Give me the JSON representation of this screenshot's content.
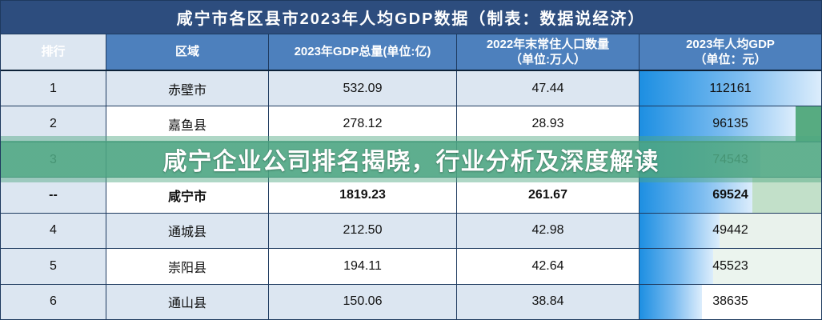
{
  "title": "咸宁市各区县市2023年人均GDP数据（制表：数据说经济）",
  "overlay": {
    "text": "咸宁企业公司排名揭晓，行业分析及深度解读",
    "color": "#4da681"
  },
  "colors": {
    "title_bg": "#2d4d7e",
    "header_bg": "#4d80bd",
    "rank_col_bg": "#dce6f1",
    "row_alt_bg": "#dce6f1",
    "row_bg": "#ffffff",
    "grid": "#1e3a5f",
    "bar_start": "#1d8fe2",
    "bar_end": "#dcedfc"
  },
  "chart_data": {
    "type": "table",
    "title": "咸宁市各区县市2023年人均GDP数据（制表：数据说经济）",
    "columns": [
      [
        "排行"
      ],
      [
        "区域"
      ],
      [
        "2023年GDP总量(单位:亿)"
      ],
      [
        "2022年末常住人口数量",
        "（单位:万人）"
      ],
      [
        "2023年人均GDP",
        "（单位：元）"
      ]
    ],
    "bar_column": "2023年人均GDP",
    "bar_max": 112161,
    "rows": [
      {
        "rank": "1",
        "region": "赤壁市",
        "gdp_total": "532.09",
        "population": "47.44",
        "per_capita_gdp": "112161",
        "bold": false,
        "row_bg": "#dce6f1",
        "bar_trail_bg": "#dce6f1"
      },
      {
        "rank": "2",
        "region": "嘉鱼县",
        "gdp_total": "278.12",
        "population": "28.93",
        "per_capita_gdp": "96135",
        "bold": false,
        "row_bg": "#ffffff",
        "bar_trail_bg": "#57ab81"
      },
      {
        "rank": "3",
        "region": "",
        "gdp_total": "",
        "population": "",
        "per_capita_gdp": "74543",
        "bold": false,
        "row_bg": "#dce6f1",
        "bar_trail_bg": "#ffffff"
      },
      {
        "rank": "--",
        "region": "咸宁市",
        "gdp_total": "1819.23",
        "population": "261.67",
        "per_capita_gdp": "69524",
        "bold": true,
        "row_bg": "#ffffff",
        "bar_trail_bg": "#c2e0c9"
      },
      {
        "rank": "4",
        "region": "通城县",
        "gdp_total": "212.50",
        "population": "42.98",
        "per_capita_gdp": "49442",
        "bold": false,
        "row_bg": "#dce6f1",
        "bar_trail_bg": "#e9f2ec"
      },
      {
        "rank": "5",
        "region": "崇阳县",
        "gdp_total": "194.11",
        "population": "42.64",
        "per_capita_gdp": "45523",
        "bold": false,
        "row_bg": "#ffffff",
        "bar_trail_bg": "#ebf4ee"
      },
      {
        "rank": "6",
        "region": "通山县",
        "gdp_total": "150.06",
        "population": "38.84",
        "per_capita_gdp": "38635",
        "bold": false,
        "row_bg": "#dce6f1",
        "bar_trail_bg": "#ffffff"
      }
    ]
  }
}
